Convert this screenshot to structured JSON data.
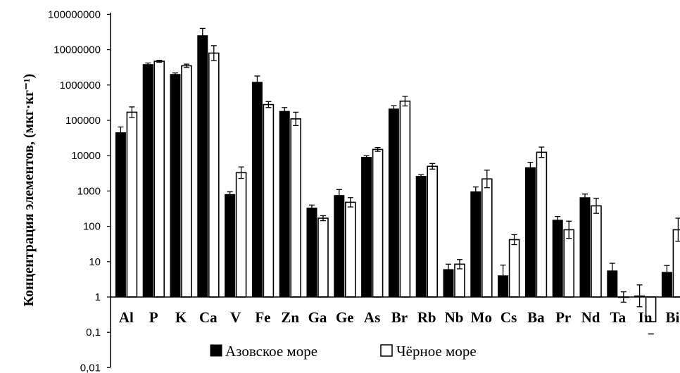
{
  "chart_data": {
    "type": "bar",
    "scale": "log",
    "ylabel": "Концентрация элементов, (мкг·кг⁻¹)",
    "ylim": [
      0.01,
      100000000
    ],
    "yticks": [
      "0,01",
      "0,1",
      "1",
      "10",
      "100",
      "1000",
      "10000",
      "100000",
      "1000000",
      "10000000",
      "100000000"
    ],
    "categories": [
      "Al",
      "P",
      "K",
      "Ca",
      "V",
      "Fe",
      "Zn",
      "Ga",
      "Ge",
      "As",
      "Br",
      "Rb",
      "Nb",
      "Mo",
      "Cs",
      "Ba",
      "Pr",
      "Nd",
      "Ta",
      "In",
      "Bi"
    ],
    "series": [
      {
        "name": "Азовское море",
        "color": "#000000",
        "values": [
          45000,
          3800000,
          2000000,
          25000000,
          800,
          1200000,
          180000,
          330,
          750,
          9000,
          210000,
          2600,
          6,
          950,
          4,
          4600,
          150,
          650,
          5.5,
          1.08,
          5
        ],
        "err": [
          65000,
          4200000,
          2200000,
          40000000,
          950,
          1800000,
          230000,
          400,
          1100,
          10000,
          260000,
          2900,
          8.5,
          1300,
          8,
          6500,
          190,
          820,
          9,
          2.2,
          7.8
        ]
      },
      {
        "name": "Чёрное море",
        "color": "#ffffff",
        "values": [
          170000,
          4700000,
          3500000,
          8000000,
          3300,
          280000,
          110000,
          170,
          480,
          15000,
          350000,
          5000,
          8.5,
          2200,
          42,
          12500,
          80,
          380,
          1,
          0.2,
          80
        ],
        "err": [
          240000,
          5000000,
          3900000,
          13000000,
          4800,
          340000,
          170000,
          200,
          650,
          17000,
          480000,
          6000,
          11.5,
          3900,
          58,
          17500,
          140,
          620,
          1.4,
          0.09,
          170
        ]
      }
    ],
    "legend": "bottom"
  }
}
